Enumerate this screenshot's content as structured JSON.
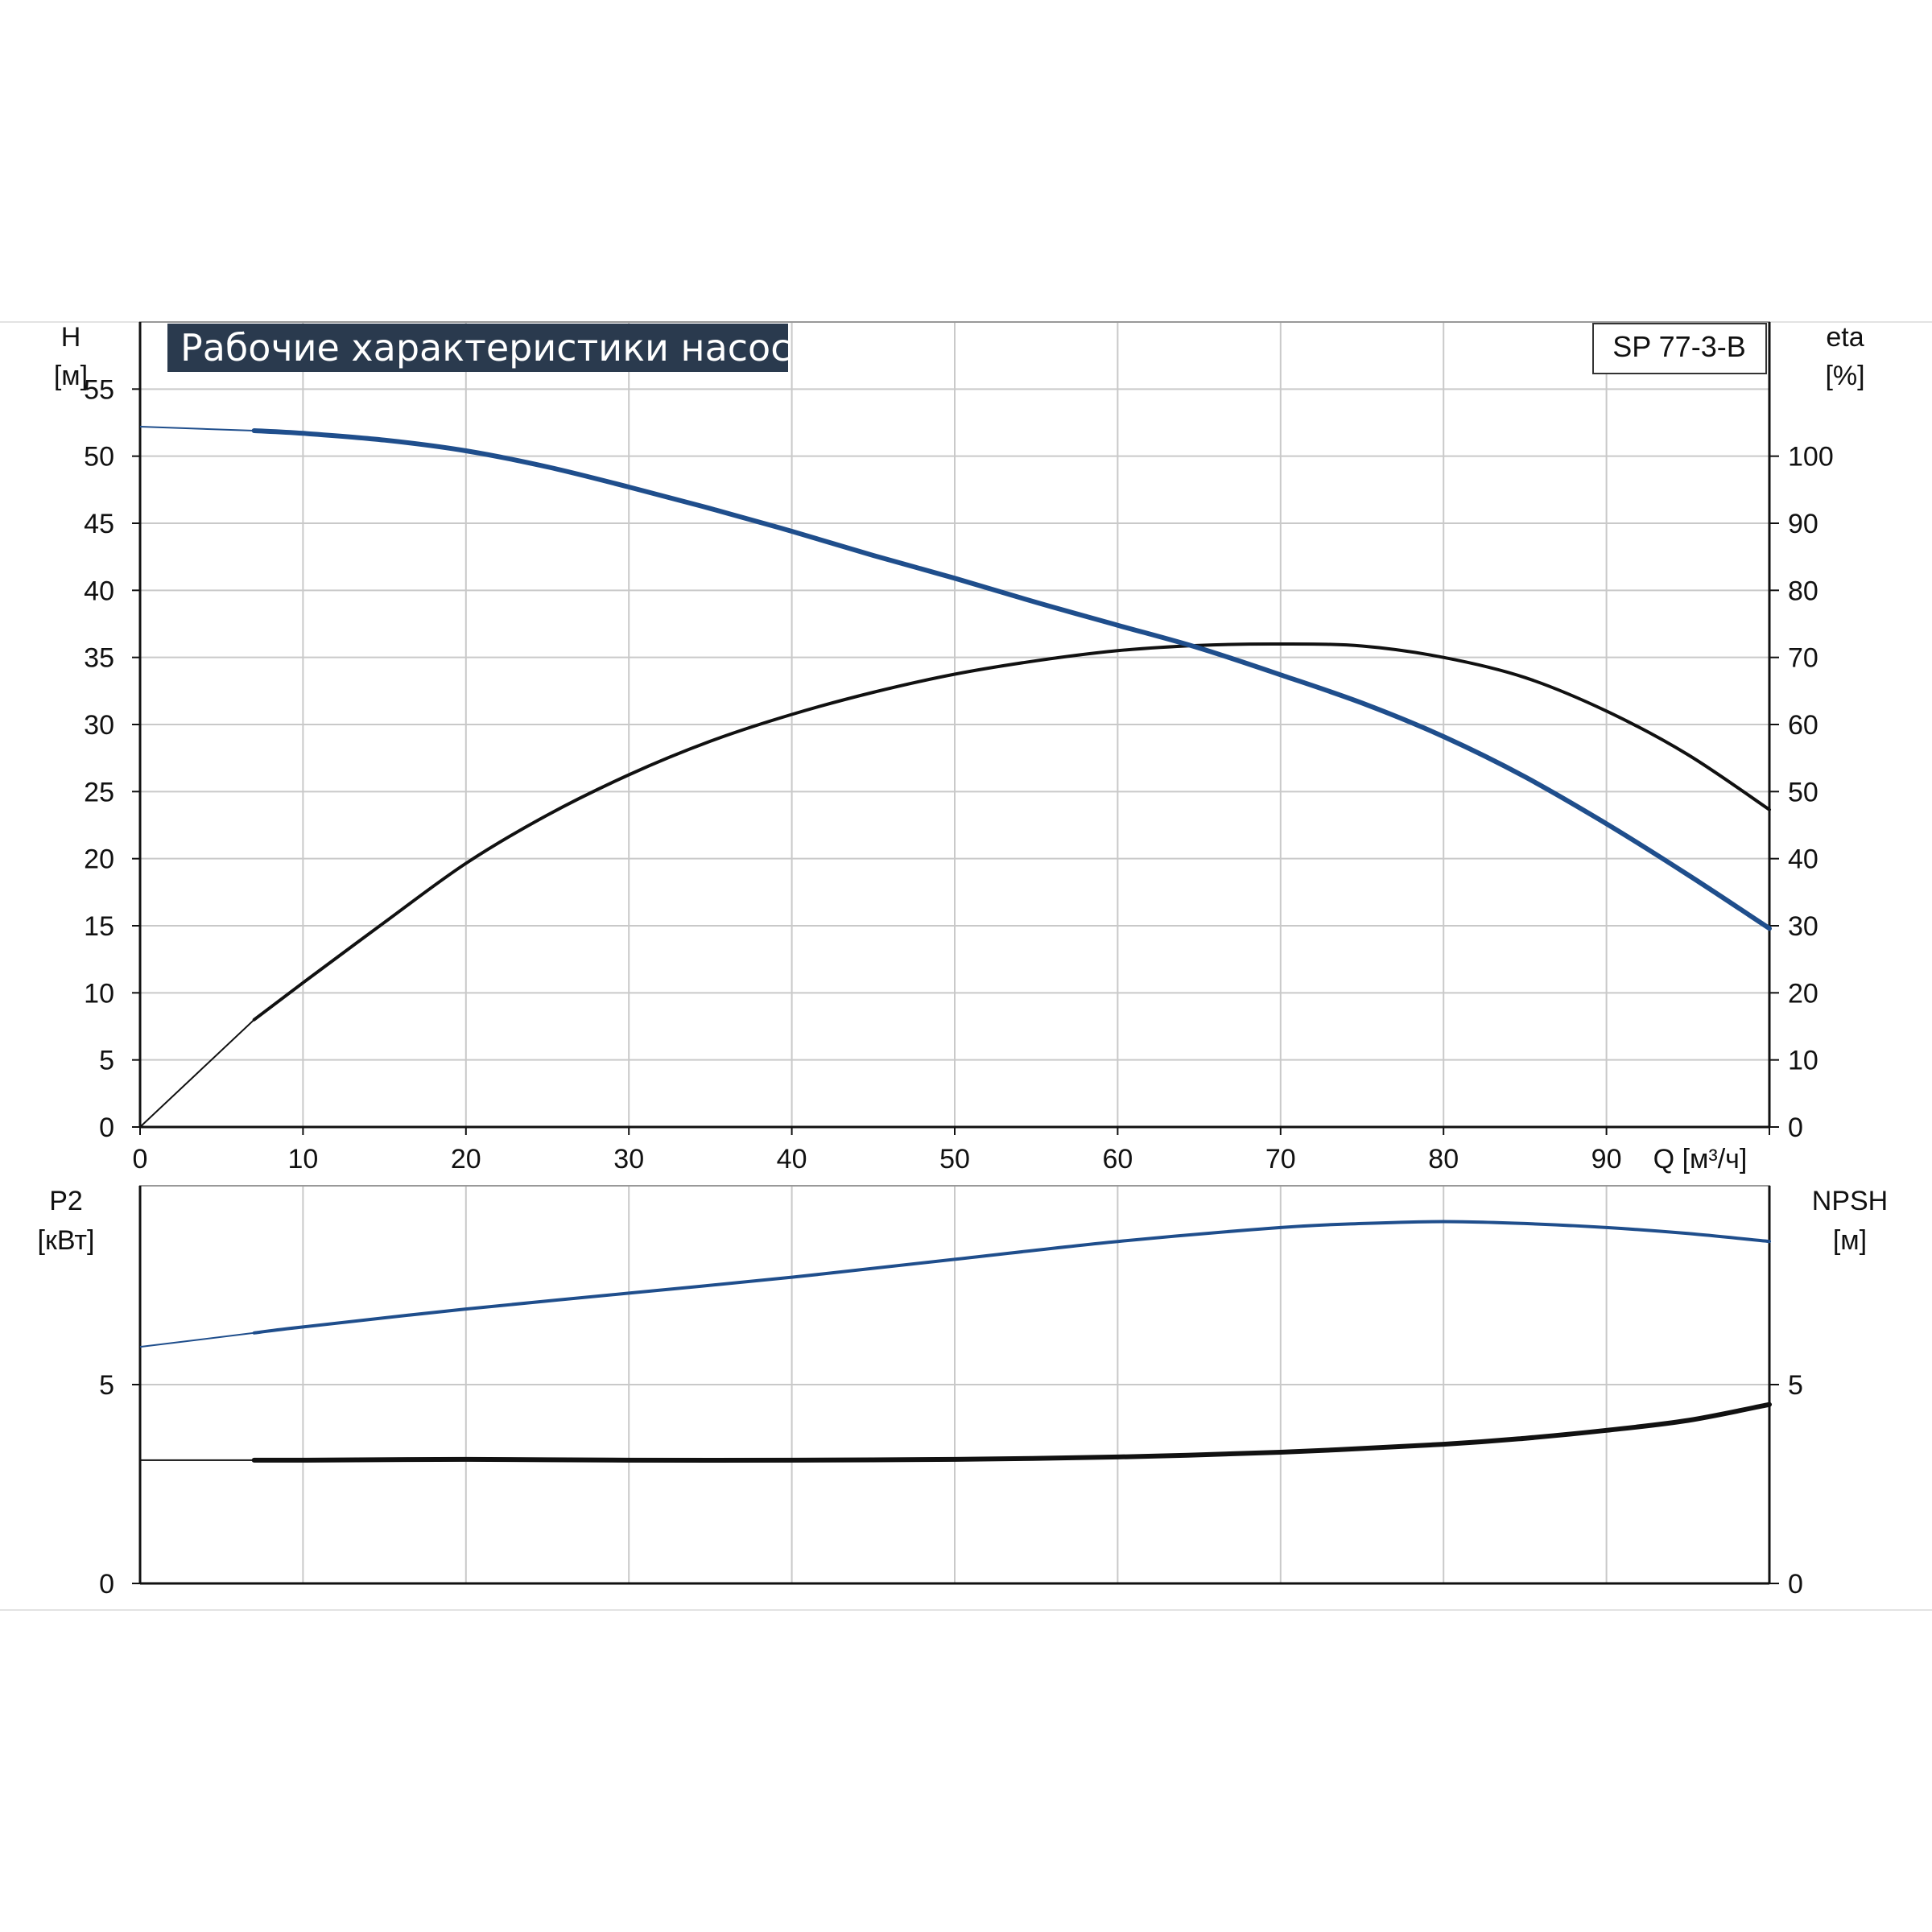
{
  "chart_data": {
    "type": "line",
    "title": "Рабочие характеристики насоса",
    "model": "SP 77-3-B",
    "x_axis": {
      "label": "Q [м³/ч]",
      "range": [
        0,
        100
      ],
      "ticks": [
        0,
        10,
        20,
        30,
        40,
        50,
        60,
        70,
        80,
        90
      ]
    },
    "top_panel": {
      "left_axis": {
        "label_line1": "H",
        "label_line2": "[м]",
        "range": [
          0,
          60
        ],
        "ticks": [
          0,
          5,
          10,
          15,
          20,
          25,
          30,
          35,
          40,
          45,
          50,
          55
        ]
      },
      "right_axis": {
        "label_line1": "eta",
        "label_line2": "[%]",
        "range": [
          0,
          120
        ],
        "ticks": [
          0,
          10,
          20,
          30,
          40,
          50,
          60,
          70,
          80,
          90,
          100
        ]
      },
      "series": [
        {
          "key": "head",
          "axis": "left",
          "color": "#1f4e8c",
          "x": [
            0,
            7,
            10,
            15,
            20,
            25,
            30,
            35,
            40,
            45,
            50,
            55,
            60,
            65,
            70,
            75,
            80,
            85,
            90,
            95,
            100
          ],
          "y": [
            52.2,
            51.9,
            51.7,
            51.2,
            50.4,
            49.2,
            47.7,
            46.1,
            44.4,
            42.6,
            40.9,
            39.1,
            37.4,
            35.7,
            33.7,
            31.6,
            29.1,
            26.1,
            22.6,
            18.8,
            14.8
          ]
        },
        {
          "key": "efficiency",
          "axis": "right",
          "color": "#111111",
          "x": [
            0,
            7,
            10,
            15,
            20,
            25,
            30,
            35,
            40,
            45,
            50,
            55,
            60,
            65,
            70,
            75,
            80,
            85,
            90,
            95,
            100
          ],
          "y": [
            0,
            16,
            21.5,
            30.5,
            39.3,
            46.5,
            52.5,
            57.5,
            61.5,
            64.8,
            67.5,
            69.5,
            71,
            71.8,
            72,
            71.7,
            70,
            67,
            62,
            55.5,
            47.3
          ]
        }
      ]
    },
    "bottom_panel": {
      "left_axis": {
        "label_line1": "P2",
        "label_line2": "[кВт]",
        "range": [
          0,
          10
        ],
        "ticks": [
          0,
          5
        ]
      },
      "right_axis": {
        "label_line1": "NPSH",
        "label_line2": "[м]",
        "range": [
          0,
          10
        ],
        "ticks": [
          0,
          5
        ]
      },
      "series": [
        {
          "key": "power_p2",
          "axis": "left",
          "color": "#1f4e8c",
          "x": [
            0,
            7,
            10,
            20,
            30,
            40,
            50,
            60,
            70,
            75,
            80,
            85,
            90,
            95,
            100
          ],
          "y": [
            5.95,
            6.3,
            6.45,
            6.9,
            7.3,
            7.7,
            8.15,
            8.6,
            8.95,
            9.05,
            9.1,
            9.05,
            8.95,
            8.8,
            8.6
          ]
        },
        {
          "key": "npsh",
          "axis": "right",
          "color": "#111111",
          "x": [
            0,
            7,
            10,
            20,
            30,
            40,
            50,
            60,
            70,
            80,
            85,
            90,
            95,
            100
          ],
          "y": [
            3.1,
            3.1,
            3.1,
            3.12,
            3.1,
            3.1,
            3.12,
            3.18,
            3.3,
            3.5,
            3.65,
            3.85,
            4.1,
            4.5
          ]
        }
      ]
    },
    "grid": true
  }
}
